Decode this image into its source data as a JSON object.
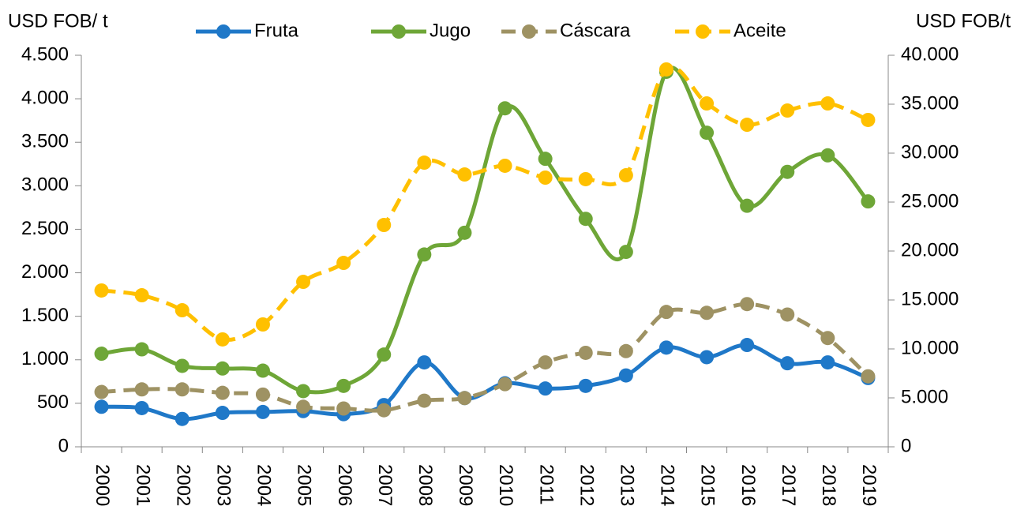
{
  "chart_data": {
    "type": "line",
    "y_label": "USD FOB/ t",
    "y2_label": "USD FOB/t",
    "categories": [
      "2000",
      "2001",
      "2002",
      "2003",
      "2004",
      "2005",
      "2006",
      "2007",
      "2008",
      "2009",
      "2010",
      "2011",
      "2012",
      "2013",
      "2014",
      "2015",
      "2016",
      "2017",
      "2018",
      "2019"
    ],
    "series": [
      {
        "name": "Fruta",
        "color": "#1f78c8",
        "dashed": false,
        "values": [
          460,
          445,
          320,
          390,
          400,
          410,
          375,
          480,
          970,
          560,
          730,
          670,
          700,
          820,
          1140,
          1030,
          1170,
          960,
          970,
          790
        ]
      },
      {
        "name": "Jugo",
        "color": "#6ea637",
        "dashed": false,
        "values": [
          1070,
          1120,
          930,
          900,
          875,
          640,
          700,
          1060,
          2210,
          2460,
          3890,
          3310,
          2620,
          2240,
          4310,
          3610,
          2770,
          3160,
          3350,
          2820
        ]
      },
      {
        "name": "Cáscara",
        "color": "#9e9263",
        "dashed": true,
        "values": [
          630,
          660,
          660,
          620,
          600,
          460,
          440,
          420,
          530,
          560,
          720,
          970,
          1080,
          1100,
          1550,
          1540,
          1640,
          1520,
          1250,
          810
        ]
      },
      {
        "name": "Aceite",
        "color": "#ffc000",
        "dashed": true,
        "axis": "y2",
        "values": [
          15970,
          15480,
          13950,
          10970,
          12500,
          16850,
          18790,
          22660,
          29030,
          27820,
          28710,
          27500,
          27340,
          27740,
          38550,
          35080,
          32900,
          34350,
          35080,
          33390
        ]
      }
    ],
    "ylim": [
      0,
      4500
    ],
    "yticks": [
      0,
      500,
      {
        "value": 1000,
        "label": "1.000"
      },
      {
        "value": 1500,
        "label": "1.500"
      },
      {
        "value": 2000,
        "label": "2.000"
      },
      {
        "value": 2500,
        "label": "2.500"
      },
      {
        "value": 3000,
        "label": "3.000"
      },
      {
        "value": 3500,
        "label": "3.500"
      },
      {
        "value": 4000,
        "label": "4.000"
      },
      {
        "value": 4500,
        "label": "4.500"
      }
    ],
    "y2lim": [
      0,
      40000
    ],
    "y2ticks": [
      0,
      {
        "value": 5000,
        "label": "5.000"
      },
      {
        "value": 10000,
        "label": "10.000"
      },
      {
        "value": 15000,
        "label": "15.000"
      },
      {
        "value": 20000,
        "label": "20.000"
      },
      {
        "value": 25000,
        "label": "25.000"
      },
      {
        "value": 30000,
        "label": "30.000"
      },
      {
        "value": 35000,
        "label": "35.000"
      },
      {
        "value": 40000,
        "label": "40.000"
      }
    ],
    "legend": "top",
    "smooth": true
  }
}
